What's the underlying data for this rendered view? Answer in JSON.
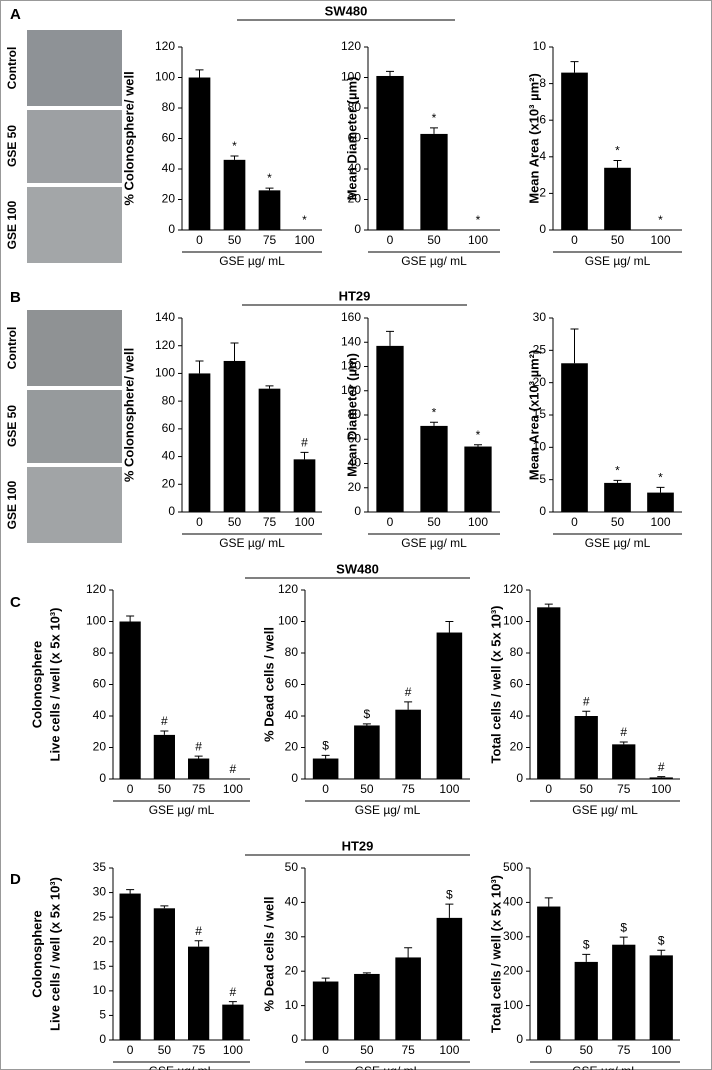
{
  "panels": [
    {
      "letter": "A",
      "title": "SW480",
      "images": [
        "Control",
        "GSE 50",
        "GSE 100"
      ]
    },
    {
      "letter": "B",
      "title": "HT29",
      "images": [
        "Control",
        "GSE 50",
        "GSE 100"
      ]
    },
    {
      "letter": "C",
      "title": "SW480"
    },
    {
      "letter": "D",
      "title": "HT29"
    }
  ],
  "chart_data": [
    {
      "type": "bar",
      "ylabel": "% Colonosphere/ well",
      "xlabel": "GSE µg/ mL",
      "categories": [
        "0",
        "50",
        "75",
        "100"
      ],
      "values": [
        100,
        46,
        26,
        0
      ],
      "errors": [
        5,
        2.5,
        1.5,
        0
      ],
      "annotations": [
        null,
        "*",
        "*",
        "*"
      ],
      "ylim": [
        0,
        120
      ],
      "yticks": [
        0,
        20,
        40,
        60,
        80,
        100,
        120
      ],
      "color": "#000000"
    },
    {
      "type": "bar",
      "ylabel": "Mean Diameter (µm)",
      "xlabel": "GSE µg/ mL",
      "categories": [
        "0",
        "50",
        "100"
      ],
      "values": [
        101,
        63,
        0
      ],
      "errors": [
        3,
        4,
        0
      ],
      "annotations": [
        null,
        "*",
        "*"
      ],
      "ylim": [
        0,
        120
      ],
      "yticks": [
        0,
        20,
        40,
        60,
        80,
        100,
        120
      ],
      "color": "#000000"
    },
    {
      "type": "bar",
      "ylabel": "Mean Area (x10³ µm²)",
      "xlabel": "GSE µg/ mL",
      "categories": [
        "0",
        "50",
        "100"
      ],
      "values": [
        8.6,
        3.4,
        0
      ],
      "errors": [
        0.6,
        0.4,
        0
      ],
      "annotations": [
        null,
        "*",
        "*"
      ],
      "ylim": [
        0,
        10
      ],
      "yticks": [
        0,
        2,
        4,
        6,
        8,
        10
      ],
      "color": "#000000"
    },
    {
      "type": "bar",
      "ylabel": "% Colonosphere/ well",
      "xlabel": "GSE µg/ mL",
      "categories": [
        "0",
        "50",
        "75",
        "100"
      ],
      "values": [
        100,
        109,
        89,
        38
      ],
      "errors": [
        9,
        13,
        2,
        5
      ],
      "annotations": [
        null,
        null,
        null,
        "#"
      ],
      "ylim": [
        0,
        140
      ],
      "yticks": [
        0,
        20,
        40,
        60,
        80,
        100,
        120,
        140
      ],
      "color": "#000000"
    },
    {
      "type": "bar",
      "ylabel": "Mean Diameter (µm)",
      "xlabel": "GSE µg/ mL",
      "categories": [
        "0",
        "50",
        "100"
      ],
      "values": [
        137,
        71,
        54
      ],
      "errors": [
        12,
        3,
        1.5
      ],
      "annotations": [
        null,
        "*",
        "*"
      ],
      "ylim": [
        0,
        160
      ],
      "yticks": [
        0,
        20,
        40,
        60,
        80,
        100,
        120,
        140,
        160
      ],
      "color": "#000000"
    },
    {
      "type": "bar",
      "ylabel": "Mean Area (x10³ µm²)",
      "xlabel": "GSE µg/ mL",
      "categories": [
        "0",
        "50",
        "100"
      ],
      "values": [
        23,
        4.5,
        3
      ],
      "errors": [
        5.3,
        0.4,
        0.8
      ],
      "annotations": [
        null,
        "*",
        "*"
      ],
      "ylim": [
        0,
        30
      ],
      "yticks": [
        0,
        5,
        10,
        15,
        20,
        25,
        30
      ],
      "color": "#000000"
    },
    {
      "type": "bar",
      "ylabel": [
        "Colonosphere",
        "Live cells / well (x 5x 10³)"
      ],
      "xlabel": "GSE µg/ mL",
      "categories": [
        "0",
        "50",
        "75",
        "100"
      ],
      "values": [
        100,
        28,
        13,
        0
      ],
      "errors": [
        3.5,
        2.5,
        1.5,
        0
      ],
      "annotations": [
        null,
        "#",
        "#",
        "#"
      ],
      "ylim": [
        0,
        120
      ],
      "yticks": [
        0,
        20,
        40,
        60,
        80,
        100,
        120
      ],
      "color": "#000000"
    },
    {
      "type": "bar",
      "ylabel": "% Dead cells / well",
      "xlabel": "GSE µg/ mL",
      "categories": [
        "0",
        "50",
        "75",
        "100"
      ],
      "values": [
        13,
        34,
        44,
        93
      ],
      "errors": [
        2,
        1,
        5,
        7
      ],
      "annotations": [
        "$",
        "$",
        "#",
        null
      ],
      "ylim": [
        0,
        120
      ],
      "yticks": [
        0,
        20,
        40,
        60,
        80,
        100,
        120
      ],
      "color": "#000000"
    },
    {
      "type": "bar",
      "ylabel": "Total cells / well (x 5x 10³)",
      "xlabel": "GSE µg/ mL",
      "categories": [
        "0",
        "50",
        "75",
        "100"
      ],
      "values": [
        109,
        40,
        22,
        1
      ],
      "errors": [
        2,
        3,
        1.5,
        0.5
      ],
      "annotations": [
        null,
        "#",
        "#",
        "#"
      ],
      "ylim": [
        0,
        120
      ],
      "yticks": [
        0,
        20,
        40,
        60,
        80,
        100,
        120
      ],
      "color": "#000000"
    },
    {
      "type": "bar",
      "ylabel": [
        "Colonosphere",
        "Live cells / well (x 5x 10³)"
      ],
      "xlabel": "GSE µg/ mL",
      "categories": [
        "0",
        "50",
        "75",
        "100"
      ],
      "values": [
        29.8,
        26.8,
        19,
        7.2
      ],
      "errors": [
        0.8,
        0.5,
        1.2,
        0.6
      ],
      "annotations": [
        null,
        null,
        "#",
        "#"
      ],
      "ylim": [
        0,
        35
      ],
      "yticks": [
        0,
        5,
        10,
        15,
        20,
        25,
        30,
        35
      ],
      "color": "#000000"
    },
    {
      "type": "bar",
      "ylabel": "% Dead cells / well",
      "xlabel": "GSE µg/ mL",
      "categories": [
        "0",
        "50",
        "75",
        "100"
      ],
      "values": [
        17,
        19.2,
        24,
        35.5
      ],
      "errors": [
        1,
        0.3,
        2.8,
        4
      ],
      "annotations": [
        null,
        null,
        null,
        "$"
      ],
      "ylim": [
        0,
        50
      ],
      "yticks": [
        0,
        10,
        20,
        30,
        40,
        50
      ],
      "color": "#000000"
    },
    {
      "type": "bar",
      "ylabel": "Total cells / well (x 5x 10³)",
      "xlabel": "GSE µg/ mL",
      "categories": [
        "0",
        "50",
        "75",
        "100"
      ],
      "values": [
        388,
        227,
        277,
        246
      ],
      "errors": [
        25,
        22,
        22,
        15
      ],
      "annotations": [
        null,
        "$",
        "$",
        "$"
      ],
      "ylim": [
        0,
        500
      ],
      "yticks": [
        0,
        100,
        200,
        300,
        400,
        500
      ],
      "color": "#000000"
    }
  ]
}
